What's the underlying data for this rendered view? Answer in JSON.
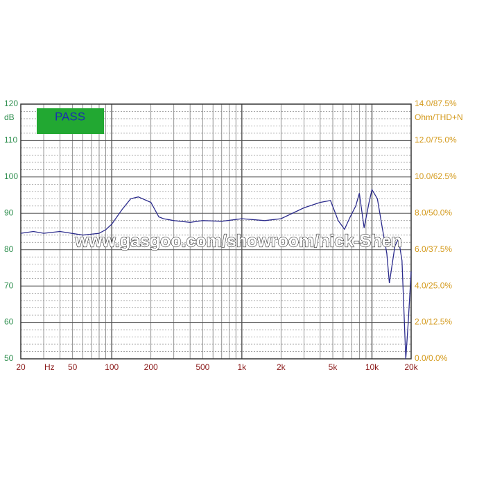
{
  "chart_data": {
    "type": "line",
    "badge": "PASS",
    "y_unit": "dB",
    "y2_unit": "Ohm/THD+N",
    "x_unit": "Hz",
    "watermark": "www.gasgoo.com/showroom/nick-Shen",
    "x": [
      20,
      25,
      30,
      40,
      60,
      80,
      90,
      100,
      120,
      140,
      160,
      200,
      230,
      250,
      300,
      400,
      500,
      700,
      1000,
      1500,
      2000,
      3000,
      4000,
      4800,
      5500,
      6150,
      6800,
      7500,
      8000,
      8700,
      9500,
      10000,
      11000,
      12000,
      13000,
      13600,
      15000,
      16000,
      17000,
      18200,
      19000,
      20000
    ],
    "values": [
      84.5,
      85,
      84.5,
      85,
      84,
      84.5,
      85.5,
      87,
      91,
      94,
      94.5,
      93,
      89,
      88.5,
      88,
      87.5,
      88,
      87.8,
      88.5,
      88,
      88.5,
      91.5,
      93,
      93.5,
      88,
      85.6,
      89,
      92,
      95.5,
      86,
      93,
      96.5,
      94,
      86,
      79,
      70.8,
      81,
      83,
      77,
      50,
      60,
      74
    ],
    "color": "#2b2b8c",
    "log_x": true,
    "xlim": [
      20,
      20000
    ],
    "xticks": [
      20,
      50,
      100,
      200,
      500,
      {
        "value": 1000,
        "label": "1k"
      },
      {
        "value": 2000,
        "label": "2k"
      },
      {
        "value": 5000,
        "label": "5k"
      },
      {
        "value": 10000,
        "label": "10k"
      },
      {
        "value": 20000,
        "label": "20k"
      }
    ],
    "ylim": [
      50,
      120
    ],
    "yticks": [
      50,
      60,
      70,
      80,
      90,
      100,
      110,
      120
    ],
    "y2lim": [
      0,
      14
    ],
    "y2ticks": [
      {
        "value": 0,
        "label": "0.0/0.0%"
      },
      {
        "value": 2,
        "label": "2.0/12.5%"
      },
      {
        "value": 4,
        "label": "4.0/25.0%"
      },
      {
        "value": 6,
        "label": "6.0/37.5%"
      },
      {
        "value": 8,
        "label": "8.0/50.0%"
      },
      {
        "value": 10,
        "label": "10.0/62.5%"
      },
      {
        "value": 12,
        "label": "12.0/75.0%"
      },
      {
        "value": 14,
        "label": "14.0/87.5%"
      }
    ],
    "grid": true,
    "minor_grid": true
  }
}
